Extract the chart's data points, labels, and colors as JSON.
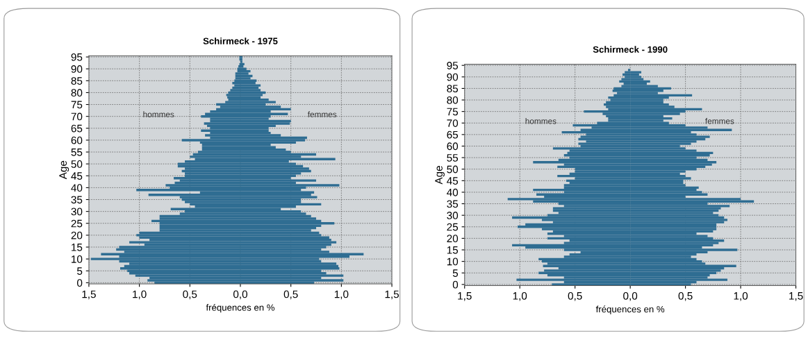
{
  "chart_data": [
    {
      "type": "bar",
      "orientation": "horizontal",
      "stacked": true,
      "title": "Schirmeck - 1975",
      "xlabel": "fréquences en %",
      "ylabel": "Age",
      "categories": [
        "95",
        null,
        null,
        null,
        null,
        "90",
        null,
        null,
        null,
        null,
        "85",
        null,
        null,
        null,
        null,
        "80",
        null,
        null,
        null,
        null,
        "75",
        null,
        null,
        null,
        null,
        "70",
        null,
        null,
        null,
        null,
        "65",
        null,
        null,
        null,
        null,
        "60",
        null,
        null,
        null,
        null,
        "55",
        null,
        null,
        null,
        null,
        "50",
        null,
        null,
        null,
        null,
        "45",
        null,
        null,
        null,
        null,
        "40",
        null,
        null,
        null,
        null,
        "35",
        null,
        null,
        null,
        null,
        "30",
        null,
        null,
        null,
        null,
        "25",
        null,
        null,
        null,
        null,
        "20",
        null,
        null,
        null,
        null,
        "15",
        null,
        null,
        null,
        null,
        "10",
        null,
        null,
        null,
        null,
        "5",
        null,
        null,
        null,
        null,
        "0"
      ],
      "series": [
        {
          "name": "hommes",
          "color": "#2f6d92",
          "values": [
            -0.01,
            -0.01,
            0,
            -0.01,
            -0.02,
            -0.03,
            -0.03,
            -0.05,
            -0.05,
            -0.05,
            -0.06,
            -0.08,
            -0.06,
            -0.08,
            -0.1,
            -0.12,
            -0.14,
            -0.13,
            -0.12,
            -0.15,
            -0.24,
            -0.2,
            -0.24,
            -0.3,
            -0.35,
            -0.39,
            -0.3,
            -0.3,
            -0.36,
            -0.33,
            -0.3,
            -0.39,
            -0.3,
            -0.35,
            -0.3,
            -0.58,
            -0.4,
            -0.38,
            -0.38,
            -0.38,
            -0.42,
            -0.47,
            -0.5,
            -0.45,
            -0.55,
            -0.62,
            -0.62,
            -0.55,
            -0.58,
            -0.55,
            -0.55,
            -0.66,
            -0.6,
            -0.65,
            -0.74,
            -0.7,
            -1.03,
            -0.4,
            -0.91,
            -0.6,
            -0.58,
            -0.55,
            -0.5,
            -0.45,
            -0.69,
            -0.55,
            -0.6,
            -0.8,
            -0.8,
            -0.88,
            -0.8,
            -0.8,
            -0.8,
            -0.8,
            -1.0,
            -1.03,
            -1.0,
            -0.9,
            -1.1,
            -0.95,
            -1.2,
            -1.23,
            -1.15,
            -1.38,
            -1.2,
            -1.48,
            -1.2,
            -1.1,
            -1.15,
            -1.19,
            -1.12,
            -1.1,
            -1.04,
            -0.9,
            -0.92,
            -0.85
          ]
        },
        {
          "name": "femmes",
          "color": "#2f6d92",
          "values": [
            0.02,
            0.02,
            0.02,
            0.04,
            0.03,
            0.06,
            0.1,
            0.08,
            0.12,
            0.1,
            0.16,
            0.15,
            0.2,
            0.18,
            0.2,
            0.25,
            0.22,
            0.2,
            0.28,
            0.35,
            0.25,
            0.4,
            0.5,
            0.3,
            0.47,
            0.3,
            0.28,
            0.5,
            0.49,
            0.35,
            0.28,
            0.28,
            0.3,
            0.4,
            0.66,
            0.64,
            0.55,
            0.3,
            0.35,
            0.45,
            0.5,
            0.75,
            0.6,
            0.94,
            0.48,
            0.55,
            0.62,
            0.68,
            0.7,
            0.6,
            0.55,
            0.5,
            0.75,
            0.55,
            0.98,
            0.65,
            0.6,
            0.73,
            0.7,
            0.76,
            0.6,
            0.6,
            0.8,
            0.55,
            0.4,
            0.6,
            0.65,
            0.7,
            0.75,
            0.8,
            0.93,
            0.8,
            0.75,
            0.7,
            0.78,
            0.8,
            0.88,
            0.9,
            0.95,
            0.9,
            0.85,
            0.8,
            0.88,
            1.22,
            1.08,
            0.78,
            0.8,
            0.95,
            0.97,
            0.98,
            0.8,
            0.85,
            1.02,
            0.8,
            1.02,
            0.73
          ]
        }
      ],
      "xlim": [
        -1.5,
        1.5
      ],
      "xticks": [
        {
          "value": -1.5,
          "label": "1,5"
        },
        {
          "value": -1.0,
          "label": "1,0"
        },
        {
          "value": -0.5,
          "label": "0,5"
        },
        {
          "value": 0,
          "label": "0,0"
        },
        {
          "value": 0.5,
          "label": "0,5"
        },
        {
          "value": 1.0,
          "label": "1,0"
        },
        {
          "value": 1.5,
          "label": "1,5"
        }
      ],
      "grid": true
    },
    {
      "type": "bar",
      "orientation": "horizontal",
      "stacked": true,
      "title": "Schirmeck - 1990",
      "xlabel": "fréquences en %",
      "ylabel": "Age",
      "categories": [
        "95",
        null,
        null,
        null,
        null,
        "90",
        null,
        null,
        null,
        null,
        "85",
        null,
        null,
        null,
        null,
        "80",
        null,
        null,
        null,
        null,
        "75",
        null,
        null,
        null,
        null,
        "70",
        null,
        null,
        null,
        null,
        "65",
        null,
        null,
        null,
        null,
        "60",
        null,
        null,
        null,
        null,
        "55",
        null,
        null,
        null,
        null,
        "50",
        null,
        null,
        null,
        null,
        "45",
        null,
        null,
        null,
        null,
        "40",
        null,
        null,
        null,
        null,
        "35",
        null,
        null,
        null,
        null,
        "30",
        null,
        null,
        null,
        null,
        "25",
        null,
        null,
        null,
        null,
        "20",
        null,
        null,
        null,
        null,
        "15",
        null,
        null,
        null,
        null,
        "10",
        null,
        null,
        null,
        null,
        "5",
        null,
        null,
        null,
        null,
        "0"
      ],
      "series": [
        {
          "name": "hommes",
          "color": "#2f6d92",
          "values": [
            0,
            0,
            -0.02,
            -0.05,
            -0.07,
            -0.05,
            -0.08,
            -0.1,
            -0.06,
            -0.08,
            -0.15,
            -0.16,
            -0.12,
            -0.15,
            -0.2,
            -0.18,
            -0.22,
            -0.24,
            -0.22,
            -0.2,
            -0.42,
            -0.25,
            -0.22,
            -0.2,
            -0.2,
            -0.3,
            -0.52,
            -0.35,
            -0.45,
            -0.62,
            -0.4,
            -0.45,
            -0.47,
            -0.4,
            -0.47,
            -0.45,
            -0.7,
            -0.55,
            -0.57,
            -0.6,
            -0.55,
            -0.65,
            -0.88,
            -0.6,
            -0.66,
            -0.5,
            -0.5,
            -0.55,
            -0.66,
            -0.5,
            -0.58,
            -0.55,
            -0.6,
            -0.6,
            -0.88,
            -0.6,
            -0.85,
            -0.78,
            -1.11,
            -0.88,
            -0.65,
            -0.6,
            -0.7,
            -0.7,
            -0.65,
            -0.75,
            -1.07,
            -0.8,
            -0.7,
            -0.95,
            -1.02,
            -0.8,
            -0.7,
            -0.75,
            -0.6,
            -0.75,
            -0.55,
            -0.6,
            -1.07,
            -0.95,
            -0.6,
            -0.45,
            -0.55,
            -0.6,
            -0.83,
            -0.8,
            -0.75,
            -0.79,
            -0.65,
            -0.78,
            -0.83,
            -0.75,
            -0.6,
            -1.03,
            -0.6,
            -0.71
          ]
        },
        {
          "name": "femmes",
          "color": "#2f6d92",
          "values": [
            0,
            0,
            0,
            0.1,
            0.08,
            0.1,
            0.12,
            0.18,
            0.15,
            0.25,
            0.37,
            0.3,
            0.25,
            0.56,
            0.35,
            0.3,
            0.3,
            0.35,
            0.4,
            0.65,
            0.5,
            0.45,
            0.3,
            0.38,
            0.3,
            0.35,
            0.5,
            0.7,
            0.92,
            0.55,
            0.6,
            0.72,
            0.68,
            0.6,
            0.55,
            0.45,
            0.5,
            0.6,
            0.75,
            0.72,
            0.6,
            0.7,
            0.78,
            0.74,
            0.68,
            0.6,
            0.5,
            0.45,
            0.5,
            0.55,
            0.48,
            0.48,
            0.5,
            0.62,
            0.6,
            0.65,
            0.7,
            0.5,
            1.0,
            1.12,
            0.7,
            0.9,
            0.82,
            0.8,
            0.75,
            0.8,
            0.85,
            0.88,
            0.85,
            0.78,
            0.78,
            0.78,
            0.75,
            0.6,
            0.7,
            0.75,
            0.85,
            0.8,
            0.75,
            0.65,
            0.97,
            0.7,
            0.6,
            0.55,
            0.6,
            0.65,
            0.68,
            0.96,
            0.85,
            0.82,
            0.78,
            0.72,
            0.7,
            0.88,
            0.6,
            0.55
          ]
        }
      ],
      "xlim": [
        -1.5,
        1.5
      ],
      "xticks": [
        {
          "value": -1.5,
          "label": "1,5"
        },
        {
          "value": -1.0,
          "label": "1,0"
        },
        {
          "value": -0.5,
          "label": "0,5"
        },
        {
          "value": 0,
          "label": "0,0"
        },
        {
          "value": 0.5,
          "label": "0,5"
        },
        {
          "value": 1.0,
          "label": "1,0"
        },
        {
          "value": 1.5,
          "label": "1,5"
        }
      ],
      "grid": true
    }
  ]
}
